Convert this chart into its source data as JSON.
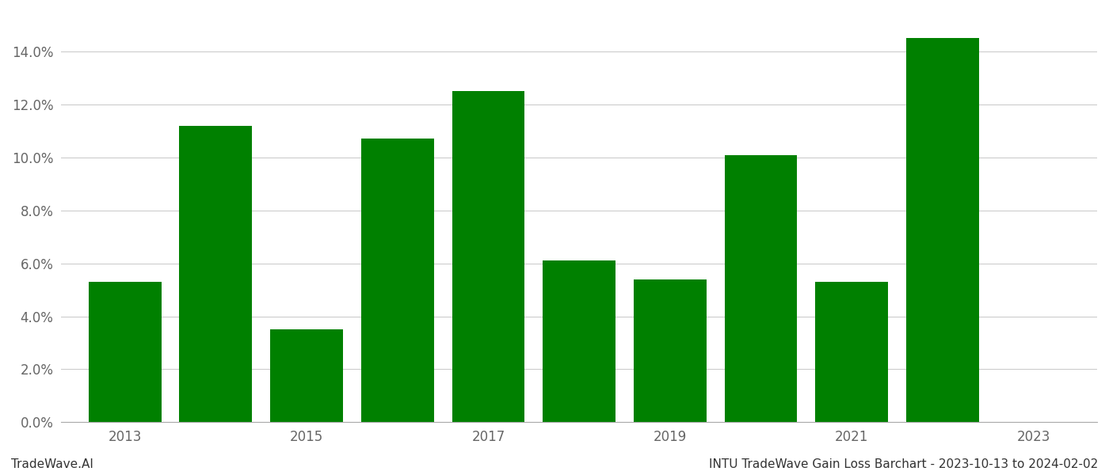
{
  "years": [
    2013,
    2014,
    2015,
    2016,
    2017,
    2018,
    2019,
    2020,
    2021,
    2022
  ],
  "values": [
    0.053,
    0.112,
    0.035,
    0.107,
    0.125,
    0.061,
    0.054,
    0.101,
    0.053,
    0.145
  ],
  "bar_color": "#008000",
  "background_color": "#ffffff",
  "grid_color": "#cccccc",
  "ylim": [
    0,
    0.155
  ],
  "yticks": [
    0.0,
    0.02,
    0.04,
    0.06,
    0.08,
    0.1,
    0.12,
    0.14
  ],
  "xlim": [
    2012.3,
    2023.7
  ],
  "xtick_positions": [
    2013,
    2015,
    2017,
    2019,
    2021,
    2023
  ],
  "xtick_labels": [
    "2013",
    "2015",
    "2017",
    "2019",
    "2021",
    "2023"
  ],
  "footer_left": "TradeWave.AI",
  "footer_right": "INTU TradeWave Gain Loss Barchart - 2023-10-13 to 2024-02-02",
  "footer_fontsize": 11,
  "tick_fontsize": 12,
  "bar_width": 0.8
}
